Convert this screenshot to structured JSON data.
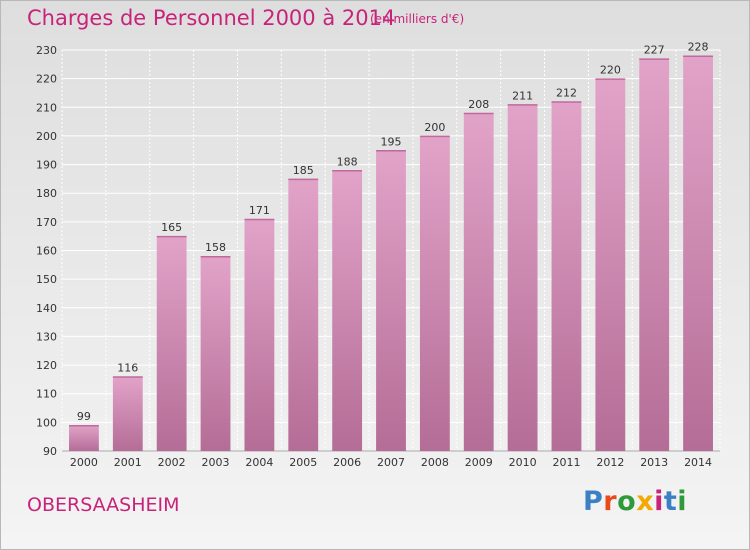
{
  "header": {
    "title": "Charges de Personnel 2000 à 2014",
    "subtitle": "(en milliers d'€)"
  },
  "footer": {
    "place": "OBERSAASHEIM",
    "logo_text": "Proxiti",
    "logo_colors": [
      "#3b7fc4",
      "#e8491d",
      "#2f9a3a",
      "#f2a900",
      "#c8237a",
      "#3b7fc4",
      "#2f9a3a"
    ]
  },
  "colors": {
    "accent": "#c8237a",
    "bar_top": "#e2a3c9",
    "bar_bottom": "#b46d96",
    "bar_cap": "#c06a9c",
    "grid": "#ffffff"
  },
  "chart_data": {
    "type": "bar",
    "title": "Charges de Personnel 2000 à 2014",
    "subtitle": "(en milliers d'€)",
    "xlabel": "",
    "ylabel": "",
    "categories": [
      "2000",
      "2001",
      "2002",
      "2003",
      "2004",
      "2005",
      "2006",
      "2007",
      "2008",
      "2009",
      "2010",
      "2011",
      "2012",
      "2013",
      "2014"
    ],
    "values": [
      99,
      116,
      165,
      158,
      171,
      185,
      188,
      195,
      200,
      208,
      211,
      212,
      220,
      227,
      228
    ],
    "ylim": [
      90,
      230
    ],
    "yticks": [
      90,
      100,
      110,
      120,
      130,
      140,
      150,
      160,
      170,
      180,
      190,
      200,
      210,
      220,
      230
    ],
    "grid": true,
    "data_labels": true
  }
}
